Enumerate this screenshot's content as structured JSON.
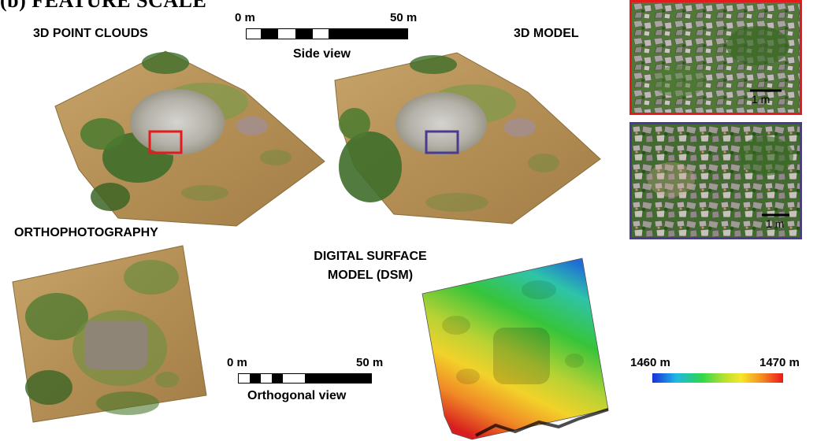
{
  "panel_title": "(b) FEATURE SCALE",
  "labels": {
    "point_clouds": "3D POINT CLOUDS",
    "model_3d": "3D MODEL",
    "orthophoto": "ORTHOPHOTOGRAPHY",
    "dsm_line1": "DIGITAL SURFACE",
    "dsm_line2": "MODEL (DSM)"
  },
  "scale_side": {
    "start": "0 m",
    "end": "50 m",
    "caption": "Side view"
  },
  "scale_ortho": {
    "start": "0 m",
    "end": "50 m",
    "caption": "Orthogonal view"
  },
  "inset_red": {
    "scale_label": "1 m",
    "color": "#e41a1c"
  },
  "inset_purple": {
    "scale_label": "1 m",
    "color": "#4b3a8f"
  },
  "elevation_legend": {
    "min_label": "1460 m",
    "max_label": "1470 m"
  },
  "colors": {
    "terrain": "#b8965a",
    "vegetation": "#4a7a2e",
    "rubble": "#b9b6ae",
    "red_box": "#e41a1c",
    "purple_box": "#4b3a8f"
  }
}
